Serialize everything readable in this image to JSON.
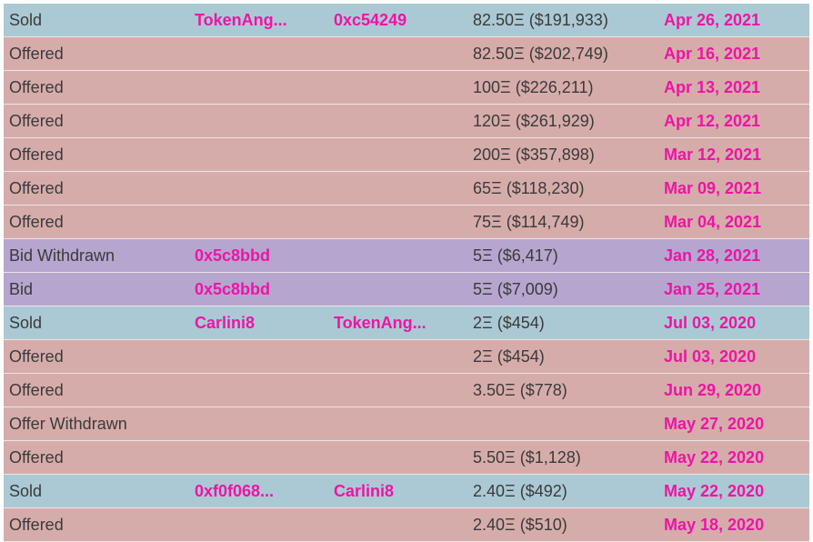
{
  "colors": {
    "sold_row": "#abc9d4",
    "offered_row": "#d6acab",
    "bid_row": "#b6a6cf",
    "accent_pink": "#ee14a6",
    "text": "#3a3a3a"
  },
  "history": [
    {
      "kind": "sold",
      "type": "Sold",
      "from": "TokenAng...",
      "to": "0xc54249",
      "amount": "82.50Ξ ($191,933)",
      "date": "Apr 26, 2021"
    },
    {
      "kind": "offered",
      "type": "Offered",
      "from": "",
      "to": "",
      "amount": "82.50Ξ ($202,749)",
      "date": "Apr 16, 2021"
    },
    {
      "kind": "offered",
      "type": "Offered",
      "from": "",
      "to": "",
      "amount": "100Ξ ($226,211)",
      "date": "Apr 13, 2021"
    },
    {
      "kind": "offered",
      "type": "Offered",
      "from": "",
      "to": "",
      "amount": "120Ξ ($261,929)",
      "date": "Apr 12, 2021"
    },
    {
      "kind": "offered",
      "type": "Offered",
      "from": "",
      "to": "",
      "amount": "200Ξ ($357,898)",
      "date": "Mar 12, 2021"
    },
    {
      "kind": "offered",
      "type": "Offered",
      "from": "",
      "to": "",
      "amount": "65Ξ ($118,230)",
      "date": "Mar 09, 2021"
    },
    {
      "kind": "offered",
      "type": "Offered",
      "from": "",
      "to": "",
      "amount": "75Ξ ($114,749)",
      "date": "Mar 04, 2021"
    },
    {
      "kind": "bid",
      "type": "Bid Withdrawn",
      "from": "0x5c8bbd",
      "to": "",
      "amount": "5Ξ ($6,417)",
      "date": "Jan 28, 2021"
    },
    {
      "kind": "bid",
      "type": "Bid",
      "from": "0x5c8bbd",
      "to": "",
      "amount": "5Ξ ($7,009)",
      "date": "Jan 25, 2021"
    },
    {
      "kind": "sold",
      "type": "Sold",
      "from": "Carlini8",
      "to": "TokenAng...",
      "amount": "2Ξ ($454)",
      "date": "Jul 03, 2020"
    },
    {
      "kind": "offered",
      "type": "Offered",
      "from": "",
      "to": "",
      "amount": "2Ξ ($454)",
      "date": "Jul 03, 2020"
    },
    {
      "kind": "offered",
      "type": "Offered",
      "from": "",
      "to": "",
      "amount": "3.50Ξ ($778)",
      "date": "Jun 29, 2020"
    },
    {
      "kind": "offered",
      "type": "Offer Withdrawn",
      "from": "",
      "to": "",
      "amount": "",
      "date": "May 27, 2020"
    },
    {
      "kind": "offered",
      "type": "Offered",
      "from": "",
      "to": "",
      "amount": "5.50Ξ ($1,128)",
      "date": "May 22, 2020"
    },
    {
      "kind": "sold",
      "type": "Sold",
      "from": "0xf0f068...",
      "to": "Carlini8",
      "amount": "2.40Ξ ($492)",
      "date": "May 22, 2020"
    },
    {
      "kind": "offered",
      "type": "Offered",
      "from": "",
      "to": "",
      "amount": "2.40Ξ ($510)",
      "date": "May 18, 2020"
    }
  ]
}
